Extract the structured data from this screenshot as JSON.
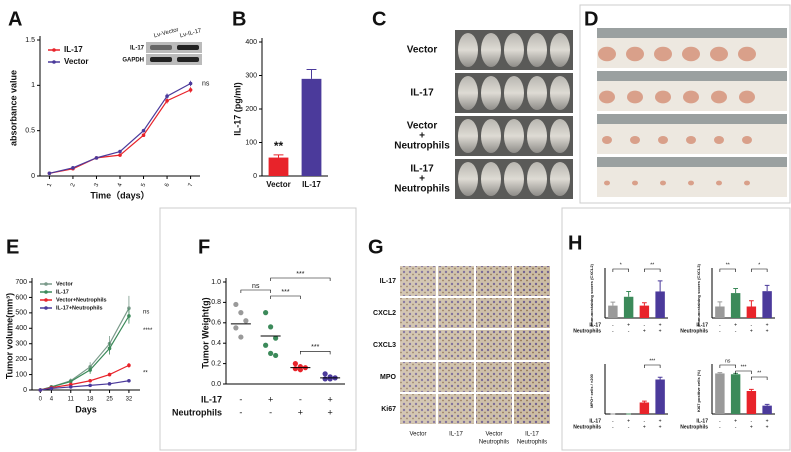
{
  "chart_data": [
    {
      "type": "line",
      "label": "A",
      "ylabel": "absorbance value",
      "xlabel": "Time（days）",
      "x": [
        1,
        2,
        3,
        4,
        5,
        6,
        7
      ],
      "xlim": [
        0.6,
        7.4
      ],
      "xticks": [
        1,
        2,
        3,
        4,
        5,
        6,
        7
      ],
      "ylim": [
        0,
        1.5
      ],
      "yticks": [
        0,
        0.5,
        1,
        1.5
      ],
      "series": [
        {
          "name": "IL-17",
          "color": "#e8232a",
          "values": [
            0.03,
            0.08,
            0.2,
            0.23,
            0.45,
            0.83,
            0.95
          ],
          "errors": [
            0.01,
            0.01,
            0.01,
            0.01,
            0.02,
            0.03,
            0.03
          ]
        },
        {
          "name": "Vector",
          "color": "#4b3a9b",
          "values": [
            0.03,
            0.09,
            0.2,
            0.27,
            0.5,
            0.88,
            1.02
          ],
          "errors": [
            0.01,
            0.01,
            0.01,
            0.01,
            0.02,
            0.03,
            0.03
          ]
        }
      ],
      "annotations": [
        "ns"
      ],
      "inset": {
        "columns": [
          "Lv-Vector",
          "Lv-IL-17"
        ],
        "rows": [
          "IL-17",
          "GAPDH"
        ]
      }
    },
    {
      "type": "bar",
      "label": "B",
      "ylabel": "IL-17  (pg/ml)",
      "categories": [
        "Vector",
        "IL-17"
      ],
      "values": [
        55,
        290
      ],
      "errors": [
        8,
        28
      ],
      "colors": [
        "#e8232a",
        "#4b3a9b"
      ],
      "ylim": [
        0,
        400
      ],
      "yticks": [
        0,
        100,
        200,
        300,
        400
      ],
      "annotations": [
        "**"
      ]
    },
    {
      "type": "line",
      "label": "E",
      "ylabel": "Tumor volume(mm³)",
      "xlabel": "Days",
      "x": [
        0,
        4,
        11,
        18,
        25,
        32
      ],
      "xlim": [
        -3,
        36
      ],
      "xticks": [
        0,
        4,
        11,
        18,
        25,
        32
      ],
      "ylim": [
        0,
        700
      ],
      "yticks": [
        0,
        100,
        200,
        300,
        400,
        500,
        600,
        700
      ],
      "series": [
        {
          "name": "Vector",
          "color": "#7a9a8a",
          "values": [
            0,
            20,
            60,
            150,
            300,
            530
          ],
          "errors": [
            0,
            5,
            15,
            30,
            50,
            80
          ]
        },
        {
          "name": "IL-17",
          "color": "#3c8a5a",
          "values": [
            0,
            20,
            55,
            130,
            270,
            480
          ],
          "errors": [
            0,
            5,
            12,
            25,
            40,
            50
          ]
        },
        {
          "name": "Vector+Neutrophils",
          "color": "#e8232a",
          "values": [
            0,
            15,
            35,
            60,
            100,
            160
          ],
          "errors": [
            0,
            3,
            6,
            10,
            12,
            15
          ]
        },
        {
          "name": "IL-17+Neutrophils",
          "color": "#4b3a9b",
          "values": [
            0,
            10,
            20,
            30,
            40,
            60
          ],
          "errors": [
            0,
            2,
            4,
            5,
            6,
            8
          ]
        }
      ],
      "annotations": [
        "ns",
        "****",
        "**"
      ]
    },
    {
      "type": "dot",
      "label": "F",
      "ylabel": "Tumor Weight(g)",
      "values": [
        0.59,
        0.47,
        0.16,
        0.06
      ],
      "groups": [
        [
          0.78,
          0.7,
          0.62,
          0.55,
          0.46
        ],
        [
          0.7,
          0.56,
          0.45,
          0.38,
          0.3,
          0.28
        ],
        [
          0.2,
          0.17,
          0.16,
          0.15,
          0.14
        ],
        [
          0.1,
          0.07,
          0.06,
          0.05,
          0.05
        ]
      ],
      "colors": [
        "#9a9a9a",
        "#3c8a5a",
        "#e8232a",
        "#4b3a9b"
      ],
      "ylim": [
        0,
        1
      ],
      "yticks": [
        {
          "value": 0,
          "label": "0.0"
        },
        0.2,
        0.4,
        0.6,
        0.8,
        {
          "value": 1,
          "label": "1.0"
        }
      ],
      "conditions": [
        {
          "name": "IL-17",
          "signs": [
            "-",
            "+",
            "-",
            "+"
          ]
        },
        {
          "name": "Neutrophils",
          "signs": [
            "-",
            "-",
            "+",
            "+"
          ]
        }
      ],
      "annotations": [
        "ns",
        "***",
        "***",
        "***"
      ]
    },
    {
      "type": "bar",
      "label": "H",
      "ylabel": "Immunostaining scores (CXCL2)",
      "values": [
        0.35,
        0.6,
        0.35,
        0.75
      ],
      "errors": [
        0.1,
        0.15,
        0.08,
        0.3
      ],
      "colors": [
        "#9a9a9a",
        "#3c8a5a",
        "#e8232a",
        "#4b3a9b"
      ],
      "ylim": [
        0,
        1.3
      ],
      "conditions": [
        {
          "name": "IL-17",
          "signs": [
            "-",
            "+",
            "-",
            "+"
          ]
        },
        {
          "name": "Neutrophils",
          "signs": [
            "-",
            "-",
            "+",
            "+"
          ]
        }
      ],
      "annotations": [
        "*",
        "**"
      ]
    },
    {
      "type": "bar",
      "ylabel": "Immunostaining scores (CXCL3)",
      "values": [
        0.3,
        0.65,
        0.3,
        0.7
      ],
      "errors": [
        0.12,
        0.12,
        0.15,
        0.15
      ],
      "colors": [
        "#9a9a9a",
        "#3c8a5a",
        "#e8232a",
        "#4b3a9b"
      ],
      "ylim": [
        0,
        1.2
      ],
      "conditions": [
        {
          "name": "IL-17",
          "signs": [
            "-",
            "+",
            "-",
            "+"
          ]
        },
        {
          "name": "Neutrophils",
          "signs": [
            "-",
            "-",
            "+",
            "+"
          ]
        }
      ],
      "annotations": [
        "**",
        "*"
      ]
    },
    {
      "type": "bar",
      "ylabel": "MPO+ cells / ×200",
      "values": [
        0,
        0,
        25,
        75
      ],
      "errors": [
        0,
        0,
        3,
        5
      ],
      "colors": [
        "#9a9a9a",
        "#3c8a5a",
        "#e8232a",
        "#4b3a9b"
      ],
      "ylim": [
        0,
        100
      ],
      "conditions": [
        {
          "name": "IL-17",
          "signs": [
            "-",
            "+",
            "-",
            "+"
          ]
        },
        {
          "name": "Neutrophils",
          "signs": [
            "-",
            "-",
            "+",
            "+"
          ]
        }
      ],
      "annotations": [
        "***"
      ]
    },
    {
      "type": "bar",
      "ylabel": "Ki67 positive cells (%)",
      "values": [
        97,
        95,
        55,
        20
      ],
      "errors": [
        2,
        2,
        4,
        3
      ],
      "colors": [
        "#9a9a9a",
        "#3c8a5a",
        "#e8232a",
        "#4b3a9b"
      ],
      "ylim": [
        0,
        110
      ],
      "conditions": [
        {
          "name": "IL-17",
          "signs": [
            "-",
            "+",
            "-",
            "+"
          ]
        },
        {
          "name": "Neutrophils",
          "signs": [
            "-",
            "-",
            "+",
            "+"
          ]
        }
      ],
      "annotations": [
        "ns",
        "***",
        "**"
      ]
    }
  ],
  "photo_panels": [
    {
      "label": "C",
      "row_labels": [
        [
          "Vector"
        ],
        [
          "IL-17"
        ],
        [
          "Vector",
          "+",
          "Neutrophils"
        ],
        [
          "IL-17",
          "+",
          "Neutrophils"
        ]
      ]
    },
    {
      "label": "D"
    },
    {
      "label": "G",
      "row_labels": [
        [
          "IL-17"
        ],
        [
          "CXCL2"
        ],
        [
          "CXCL3"
        ],
        [
          "MPO"
        ],
        [
          "Ki67"
        ]
      ],
      "column_labels": [
        [
          "Vector"
        ],
        [
          "IL-17"
        ],
        [
          "Vector",
          "Neutrophils"
        ],
        [
          "IL-17",
          "Neutrophils"
        ]
      ]
    }
  ]
}
